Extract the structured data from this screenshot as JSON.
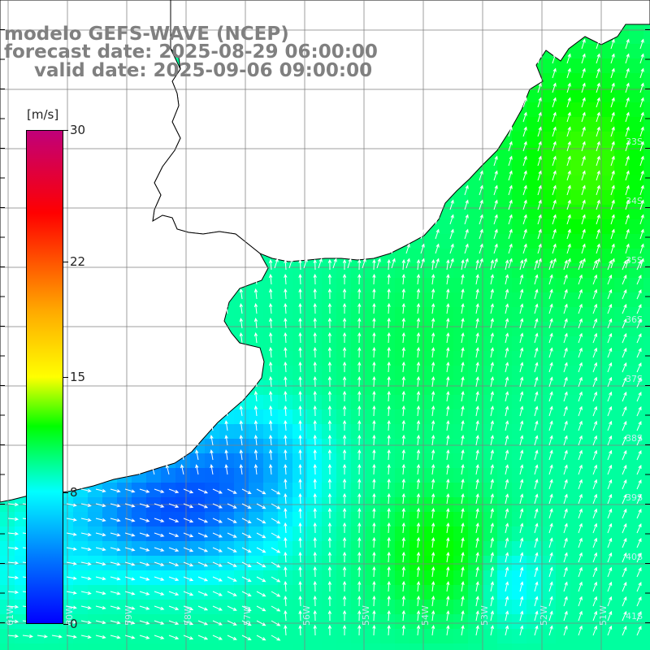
{
  "title": {
    "line1": "modelo GEFS-WAVE (NCEP)",
    "line2": "forecast date: 2025-08-29 06:00:00",
    "line3": "valid date: 2025-09-06 09:00:00"
  },
  "legend": {
    "units": "[m/s]",
    "ticks": [
      {
        "value": 30,
        "label": "30"
      },
      {
        "value": 22,
        "label": "22"
      },
      {
        "value": 15,
        "label": "15"
      },
      {
        "value": 8,
        "label": "8"
      },
      {
        "value": 0,
        "label": "0"
      }
    ],
    "min": 0,
    "max": 30,
    "stops": [
      {
        "value": 0,
        "color": "#0000ff"
      },
      {
        "value": 4,
        "color": "#0078ff"
      },
      {
        "value": 8,
        "color": "#00ffff"
      },
      {
        "value": 12,
        "color": "#00ff00"
      },
      {
        "value": 15,
        "color": "#ffff00"
      },
      {
        "value": 19,
        "color": "#ffaa00"
      },
      {
        "value": 22,
        "color": "#ff5500"
      },
      {
        "value": 25,
        "color": "#ff0000"
      },
      {
        "value": 30,
        "color": "#c0007a"
      }
    ]
  },
  "lat_labels": [
    "33S",
    "34S",
    "35S",
    "36S",
    "37S",
    "38S",
    "39S",
    "40S",
    "41S"
  ],
  "lon_labels": [
    "61W",
    "60W",
    "59W",
    "58W",
    "57W",
    "56W",
    "55W",
    "54W",
    "53W",
    "52W",
    "51W"
  ],
  "colors": {
    "land": "#ffffff",
    "coast": "#000000",
    "grid": "#808080",
    "arrow": "#ffffff",
    "title_text": "#808080"
  }
}
